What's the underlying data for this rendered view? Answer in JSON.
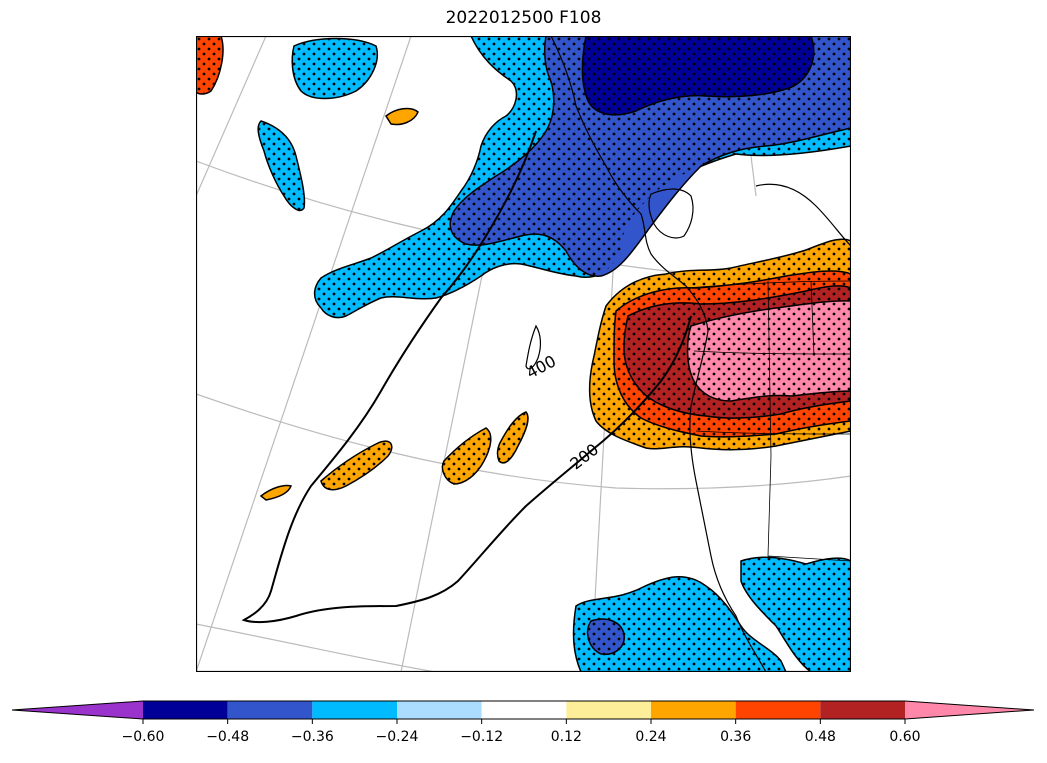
{
  "title": "2022012500 F108",
  "colorbar": {
    "extend": "both",
    "under_color": "#9933cc",
    "over_color": "#ff88aa",
    "bins": [
      {
        "color": "#000099"
      },
      {
        "color": "#3355cc"
      },
      {
        "color": "#00bbff"
      },
      {
        "color": "#aaddff"
      },
      {
        "color": "#ffffff"
      },
      {
        "color": "#ffee99"
      },
      {
        "color": "#ffa500"
      },
      {
        "color": "#ff4400"
      },
      {
        "color": "#b22222"
      }
    ],
    "ticks": [
      "−0.60",
      "−0.48",
      "−0.36",
      "−0.24",
      "−0.12",
      "0.12",
      "0.24",
      "0.36",
      "0.48",
      "0.60"
    ]
  },
  "map": {
    "contours": [
      {
        "label": "400"
      },
      {
        "label": "200"
      }
    ],
    "hatch": "dots",
    "graticule": "on"
  }
}
